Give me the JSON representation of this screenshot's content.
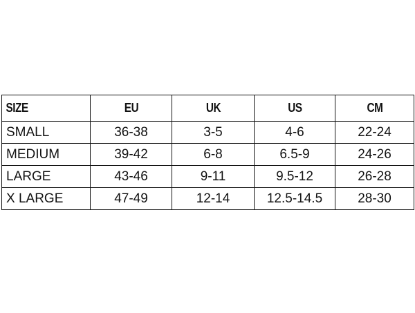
{
  "table": {
    "headers": [
      "SIZE",
      "EU",
      "UK",
      "US",
      "CM"
    ],
    "rows": [
      [
        "SMALL",
        "36-38",
        "3-5",
        "4-6",
        "22-24"
      ],
      [
        "MEDIUM",
        "39-42",
        "6-8",
        "6.5-9",
        "24-26"
      ],
      [
        "LARGE",
        "43-46",
        "9-11",
        "9.5-12",
        "26-28"
      ],
      [
        "X LARGE",
        "47-49",
        "12-14",
        "12.5-14.5",
        "28-30"
      ]
    ]
  }
}
